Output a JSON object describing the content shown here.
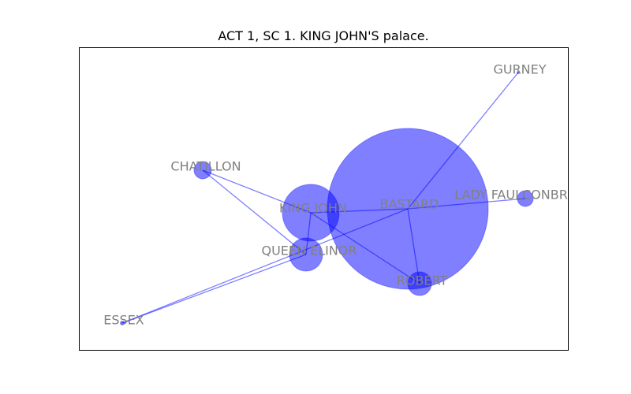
{
  "title": "ACT 1, SC 1. KING JOHN'S palace.",
  "colors": {
    "node_fill": "#0000ff",
    "edge": "#0000ff",
    "label": "#808080",
    "frame": "#000000"
  },
  "nodes": [
    {
      "id": "bastard",
      "label": "BASTARD",
      "size": "largest"
    },
    {
      "id": "king_john",
      "label": "KING JOHN",
      "size": "large"
    },
    {
      "id": "queen_elinor",
      "label": "QUEEN ELINOR",
      "size": "medium"
    },
    {
      "id": "robert",
      "label": "ROBERT",
      "size": "medium"
    },
    {
      "id": "chatillon",
      "label": "CHATILLON",
      "size": "small"
    },
    {
      "id": "lady_faulconbridge",
      "label": "LADY FAULCONBR",
      "size": "small"
    },
    {
      "id": "gurney",
      "label": "GURNEY",
      "size": "tiny"
    },
    {
      "id": "essex",
      "label": "ESSEX",
      "size": "tiny"
    }
  ],
  "edges": [
    [
      "bastard",
      "gurney"
    ],
    [
      "bastard",
      "lady_faulconbridge"
    ],
    [
      "bastard",
      "robert"
    ],
    [
      "bastard",
      "king_john"
    ],
    [
      "bastard",
      "essex"
    ],
    [
      "king_john",
      "chatillon"
    ],
    [
      "king_john",
      "queen_elinor"
    ],
    [
      "king_john",
      "robert"
    ],
    [
      "queen_elinor",
      "chatillon"
    ],
    [
      "queen_elinor",
      "essex"
    ]
  ]
}
